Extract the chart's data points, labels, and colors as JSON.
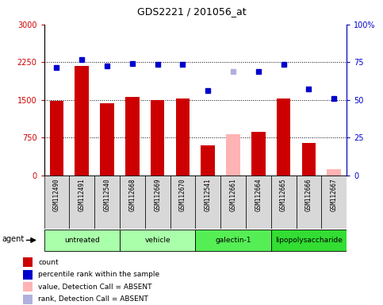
{
  "title": "GDS2221 / 201056_at",
  "samples": [
    "GSM112490",
    "GSM112491",
    "GSM112540",
    "GSM112668",
    "GSM112669",
    "GSM112670",
    "GSM112541",
    "GSM112661",
    "GSM112664",
    "GSM112665",
    "GSM112666",
    "GSM112667"
  ],
  "bar_values": [
    1480,
    2180,
    1430,
    1560,
    1490,
    1530,
    590,
    820,
    870,
    1530,
    650,
    120
  ],
  "bar_absent": [
    false,
    false,
    false,
    false,
    false,
    false,
    false,
    true,
    false,
    false,
    false,
    true
  ],
  "rank_values": [
    2150,
    2300,
    2170,
    2230,
    2200,
    2210,
    1680,
    2060,
    2060,
    2200,
    1720,
    1530
  ],
  "rank_absent": [
    false,
    false,
    false,
    false,
    false,
    false,
    false,
    true,
    false,
    false,
    false,
    false
  ],
  "bar_color_normal": "#cc0000",
  "bar_color_absent": "#ffb3b3",
  "rank_color_normal": "#0000cc",
  "rank_color_absent": "#b0b0dd",
  "ylim_left": [
    0,
    3000
  ],
  "ylim_right": [
    0,
    100
  ],
  "yticks_left": [
    0,
    750,
    1500,
    2250,
    3000
  ],
  "yticks_right": [
    0,
    25,
    50,
    75,
    100
  ],
  "ytick_labels_left": [
    "0",
    "750",
    "1500",
    "2250",
    "3000"
  ],
  "ytick_labels_right": [
    "0",
    "25",
    "50",
    "75",
    "100%"
  ],
  "groups": [
    {
      "label": "untreated",
      "start": 0,
      "end": 3,
      "color": "#aaffaa"
    },
    {
      "label": "vehicle",
      "start": 3,
      "end": 6,
      "color": "#aaffaa"
    },
    {
      "label": "galectin-1",
      "start": 6,
      "end": 9,
      "color": "#55ee55"
    },
    {
      "label": "lipopolysaccharide",
      "start": 9,
      "end": 12,
      "color": "#33dd33"
    }
  ],
  "agent_label": "agent",
  "legend_items": [
    {
      "label": "count",
      "color": "#cc0000",
      "marker": "s"
    },
    {
      "label": "percentile rank within the sample",
      "color": "#0000cc",
      "marker": "s"
    },
    {
      "label": "value, Detection Call = ABSENT",
      "color": "#ffb3b3",
      "marker": "s"
    },
    {
      "label": "rank, Detection Call = ABSENT",
      "color": "#b0b0dd",
      "marker": "s"
    }
  ],
  "gridlines": [
    750,
    1500,
    2250
  ],
  "n_samples": 12
}
